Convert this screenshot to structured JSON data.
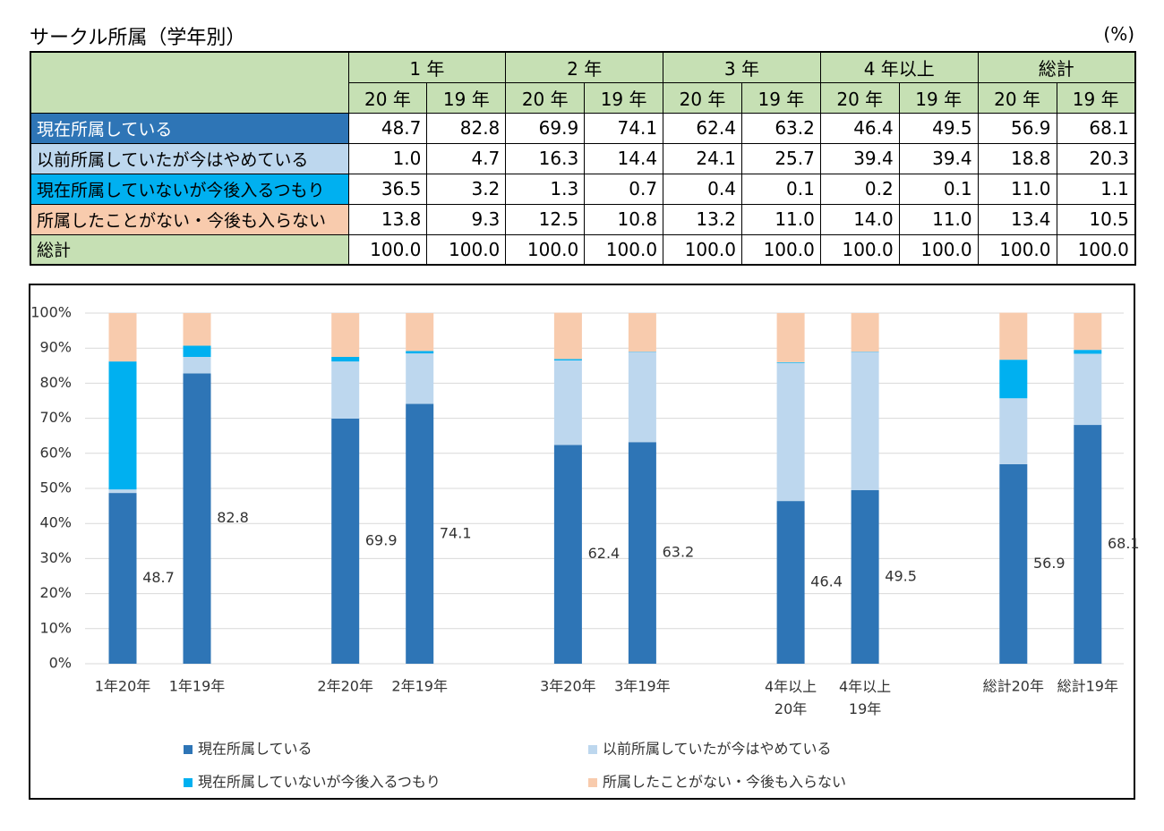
{
  "title": "サークル所属（学年別）",
  "unit": "(%)",
  "table": {
    "group_headers": [
      "1 年",
      "2 年",
      "3 年",
      "4 年以上",
      "総計"
    ],
    "sub_headers": [
      "20 年",
      "19 年",
      "20 年",
      "19 年",
      "20 年",
      "19 年",
      "20 年",
      "19 年",
      "20 年",
      "19 年"
    ],
    "rows": [
      [
        "現在所属している",
        "48.7",
        "82.8",
        "69.9",
        "74.1",
        "62.4",
        "63.2",
        "46.4",
        "49.5",
        "56.9",
        "68.1"
      ],
      [
        "以前所属していたが今はやめている",
        "1.0",
        "4.7",
        "16.3",
        "14.4",
        "24.1",
        "25.7",
        "39.4",
        "39.4",
        "18.8",
        "20.3"
      ],
      [
        "現在所属していないが今後入るつもり",
        "36.5",
        "3.2",
        "1.3",
        "0.7",
        "0.4",
        "0.1",
        "0.2",
        "0.1",
        "11.0",
        "1.1"
      ],
      [
        "所属したことがない・今後も入らない",
        "13.8",
        "9.3",
        "12.5",
        "10.8",
        "13.2",
        "11.0",
        "14.0",
        "11.0",
        "13.4",
        "10.5"
      ],
      [
        "総計",
        "100.0",
        "100.0",
        "100.0",
        "100.0",
        "100.0",
        "100.0",
        "100.0",
        "100.0",
        "100.0",
        "100.0"
      ]
    ]
  },
  "chart_data": {
    "type": "bar",
    "stacked": true,
    "grid": true,
    "categories": [
      "1年20年",
      "1年19年",
      "2年20年",
      "2年19年",
      "3年20年",
      "3年19年",
      "4年以上\n20年",
      "4年以上\n19年",
      "総計20年",
      "総計19年"
    ],
    "series": [
      {
        "name": "現在所属している",
        "color": "#2e75b6",
        "values": [
          48.7,
          82.8,
          69.9,
          74.1,
          62.4,
          63.2,
          46.4,
          49.5,
          56.9,
          68.1
        ],
        "data_labels": true
      },
      {
        "name": "以前所属していたが今はやめている",
        "color": "#bdd7ee",
        "values": [
          1.0,
          4.7,
          16.3,
          14.4,
          24.1,
          25.7,
          39.4,
          39.4,
          18.8,
          20.3
        ]
      },
      {
        "name": "現在所属していないが今後入るつもり",
        "color": "#00b0f0",
        "values": [
          36.5,
          3.2,
          1.3,
          0.7,
          0.4,
          0.1,
          0.2,
          0.1,
          11.0,
          1.1
        ]
      },
      {
        "name": "所属したことがない・今後も入らない",
        "color": "#f8cbad",
        "values": [
          13.8,
          9.3,
          12.5,
          10.8,
          13.2,
          11.0,
          14.0,
          11.0,
          13.4,
          10.5
        ]
      }
    ],
    "ylim": [
      0,
      100
    ],
    "yticks": [
      {
        "value": 0,
        "label": "0%"
      },
      {
        "value": 10,
        "label": "10%"
      },
      {
        "value": 20,
        "label": "20%"
      },
      {
        "value": 30,
        "label": "30%"
      },
      {
        "value": 40,
        "label": "40%"
      },
      {
        "value": 50,
        "label": "50%"
      },
      {
        "value": 60,
        "label": "60%"
      },
      {
        "value": 70,
        "label": "70%"
      },
      {
        "value": 80,
        "label": "80%"
      },
      {
        "value": 90,
        "label": "90%"
      },
      {
        "value": 100,
        "label": "100%"
      }
    ]
  }
}
